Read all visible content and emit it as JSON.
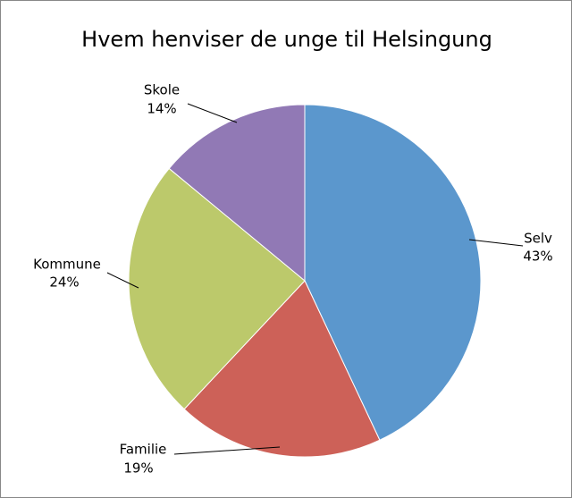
{
  "chart_data": {
    "type": "pie",
    "title": "Hvem henviser de unge til Helsingung",
    "categories": [
      "Selv",
      "Familie",
      "Kommune",
      "Skole"
    ],
    "values": [
      43,
      19,
      24,
      14
    ],
    "value_labels": [
      "43%",
      "19%",
      "24%",
      "14%"
    ],
    "colors": [
      "#5b97cd",
      "#cd6158",
      "#bcc96b",
      "#9179b5"
    ]
  }
}
